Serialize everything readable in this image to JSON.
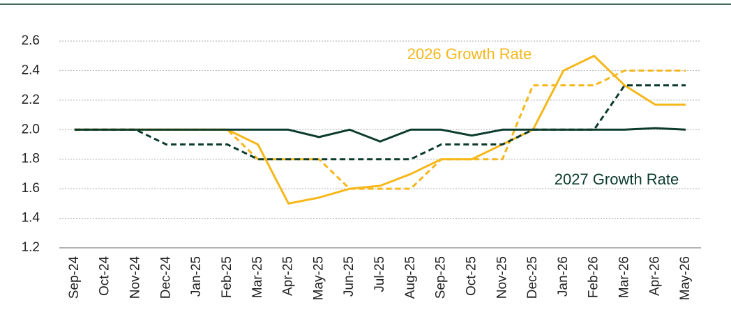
{
  "chart_data": {
    "type": "line",
    "annotations": [
      "2026 Growth Rate",
      "2027 Growth Rate"
    ],
    "categories": [
      "Sep-24",
      "Oct-24",
      "Nov-24",
      "Dec-24",
      "Jan-25",
      "Feb-25",
      "Mar-25",
      "Apr-25",
      "May-25",
      "Jun-25",
      "Jul-25",
      "Aug-25",
      "Sep-25",
      "Oct-25",
      "Nov-25",
      "Dec-25",
      "Jan-26",
      "Feb-26",
      "Mar-26",
      "Apr-26",
      "May-26"
    ],
    "series": [
      {
        "color": "#f5b71a",
        "dashed": false,
        "values": [
          2.0,
          2.0,
          2.0,
          2.0,
          2.0,
          2.0,
          1.9,
          1.5,
          1.54,
          1.6,
          1.62,
          1.7,
          1.8,
          1.8,
          1.9,
          2.0,
          2.4,
          2.5,
          2.3,
          2.17,
          2.17
        ]
      },
      {
        "color": "#f5b71a",
        "dashed": true,
        "values": [
          2.0,
          2.0,
          2.0,
          2.0,
          2.0,
          2.0,
          1.8,
          1.8,
          1.8,
          1.6,
          1.6,
          1.6,
          1.8,
          1.8,
          1.8,
          2.3,
          2.3,
          2.3,
          2.4,
          2.4,
          2.4
        ]
      },
      {
        "color": "#0c3b2e",
        "dashed": false,
        "values": [
          2.0,
          2.0,
          2.0,
          2.0,
          2.0,
          2.0,
          2.0,
          2.0,
          1.95,
          2.0,
          1.92,
          2.0,
          2.0,
          1.96,
          2.0,
          2.0,
          2.0,
          2.0,
          2.0,
          2.01,
          2.0
        ]
      },
      {
        "color": "#0c3b2e",
        "dashed": true,
        "values": [
          2.0,
          2.0,
          2.0,
          1.9,
          1.9,
          1.9,
          1.8,
          1.8,
          1.8,
          1.8,
          1.8,
          1.8,
          1.9,
          1.9,
          1.9,
          2.0,
          2.0,
          2.0,
          2.3,
          2.3,
          2.3
        ]
      }
    ],
    "ylim": [
      1.2,
      2.6
    ],
    "yticks": [
      1.2,
      1.4,
      1.6,
      1.8,
      {
        "value": 2.0,
        "label": "2.0"
      },
      2.2,
      2.4,
      2.6
    ],
    "grid": true
  }
}
